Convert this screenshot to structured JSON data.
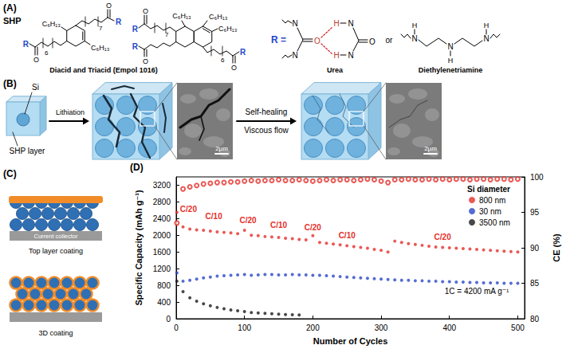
{
  "panels": {
    "A": {
      "label": "(A)",
      "title": "SHP",
      "substituent": "C₆H₁₃",
      "oxygen": "O",
      "r_group": "R",
      "repeat_counts": [
        "7",
        "6"
      ],
      "caption": "Diacid and Triacid (Empol 1016)",
      "r_equals": "R =",
      "nitrogen": "N",
      "hydrogen": "H",
      "urea": "Urea",
      "or": "or",
      "amine": "Diethylenetriamine"
    },
    "B": {
      "label": "(B)",
      "particle": "Si",
      "layer": "SHP layer",
      "step1": "Lithiation",
      "step2": "Self-healing",
      "step2_note": "Viscous flow",
      "scale_bar": "2μm"
    },
    "C": {
      "label": "(C)",
      "collector": "Current collector",
      "top": "Top layer coating",
      "three_d": "3D coating"
    },
    "D": {
      "label": "(D)"
    }
  },
  "chart_data": {
    "type": "scatter",
    "x_label": "Number of Cycles",
    "y_label": "Specific Capacity (mAh g⁻¹)",
    "y2_label": "CE (%)",
    "legend_title": "Si diameter",
    "legend": "upper right",
    "grid": false,
    "xlim": [
      0,
      510
    ],
    "xticks": [
      0,
      100,
      200,
      300,
      400,
      500
    ],
    "ylim": [
      0,
      3400
    ],
    "yticks": [
      0,
      400,
      800,
      1200,
      1600,
      2000,
      2400,
      2800,
      3200
    ],
    "y2lim": [
      80,
      100
    ],
    "y2ticks": [
      80,
      85,
      90,
      95,
      100
    ],
    "x": [
      1,
      10,
      20,
      30,
      40,
      50,
      60,
      70,
      80,
      90,
      100,
      110,
      120,
      130,
      140,
      150,
      160,
      170,
      180,
      190,
      200,
      210,
      220,
      230,
      240,
      250,
      260,
      270,
      280,
      290,
      300,
      310,
      320,
      330,
      340,
      350,
      360,
      370,
      380,
      390,
      400,
      410,
      420,
      430,
      440,
      450,
      460,
      470,
      480,
      490,
      500
    ],
    "series": [
      {
        "name": "800 nm",
        "color": "#e5302b",
        "marker": "circle",
        "values": [
          2550,
          2200,
          2150,
          2130,
          2120,
          2100,
          2080,
          2070,
          2060,
          2040,
          2120,
          2000,
          1990,
          1970,
          1960,
          1950,
          1930,
          1920,
          1900,
          1890,
          1990,
          1830,
          1810,
          1790,
          1770,
          1750,
          1730,
          1710,
          1690,
          1660,
          1640,
          1600,
          1860,
          1830,
          1800,
          1780,
          1760,
          1740,
          1720,
          1710,
          1700,
          1690,
          1680,
          1670,
          1660,
          1650,
          1640,
          1630,
          1620,
          1610,
          1600
        ]
      },
      {
        "name": "30 nm",
        "color": "#2a47c7",
        "marker": "circle",
        "values": [
          1100,
          900,
          920,
          950,
          980,
          1000,
          1020,
          1030,
          1040,
          1050,
          1060,
          1040,
          1050,
          1060,
          1060,
          1050,
          1050,
          1060,
          1050,
          1050,
          1040,
          1040,
          1030,
          1020,
          1010,
          1000,
          990,
          980,
          970,
          960,
          950,
          940,
          930,
          920,
          920,
          910,
          910,
          900,
          900,
          890,
          890,
          880,
          880,
          870,
          870,
          860,
          860,
          860,
          850,
          850,
          850
        ]
      },
      {
        "name": "3500 nm",
        "color": "#1a1a1a",
        "marker": "circle",
        "values": [
          900,
          650,
          500,
          420,
          360,
          310,
          270,
          240,
          210,
          190,
          170,
          150,
          140,
          130,
          120,
          110,
          100,
          95,
          90,
          null,
          null,
          null,
          null,
          null,
          null,
          null,
          null,
          null,
          null,
          null,
          null,
          null,
          null,
          null,
          null,
          null,
          null,
          null,
          null,
          null,
          null,
          null,
          null,
          null,
          null,
          null,
          null,
          null,
          null,
          null,
          null
        ]
      },
      {
        "name": "800 nm",
        "color": "#e5302b",
        "marker": "open circle",
        "axis": "y2",
        "values": [
          93.5,
          98.3,
          98.6,
          98.8,
          99.0,
          99.1,
          99.2,
          99.2,
          99.3,
          99.3,
          99.4,
          99.5,
          99.4,
          99.5,
          99.5,
          99.6,
          99.5,
          99.5,
          99.6,
          99.5,
          99.4,
          99.5,
          99.6,
          99.5,
          99.6,
          99.6,
          99.5,
          99.6,
          99.7,
          99.6,
          99.4,
          99.2,
          99.6,
          99.6,
          99.7,
          99.6,
          99.6,
          99.7,
          99.6,
          99.7,
          99.6,
          99.7,
          99.7,
          99.6,
          99.7,
          99.7,
          99.6,
          99.7,
          99.7,
          99.6,
          99.7
        ]
      }
    ],
    "annotations": [
      {
        "text": "C/20",
        "x": 18,
        "y": 2620
      },
      {
        "text": "C/10",
        "x": 55,
        "y": 2450
      },
      {
        "text": "C/20",
        "x": 105,
        "y": 2360
      },
      {
        "text": "C/10",
        "x": 150,
        "y": 2250
      },
      {
        "text": "C/20",
        "x": 200,
        "y": 2180
      },
      {
        "text": "C/10",
        "x": 250,
        "y": 2000
      },
      {
        "text": "C/20",
        "x": 390,
        "y": 1950
      }
    ],
    "note": {
      "text": "1C = 4200 mA g⁻¹",
      "x": 440,
      "y": 650
    }
  }
}
